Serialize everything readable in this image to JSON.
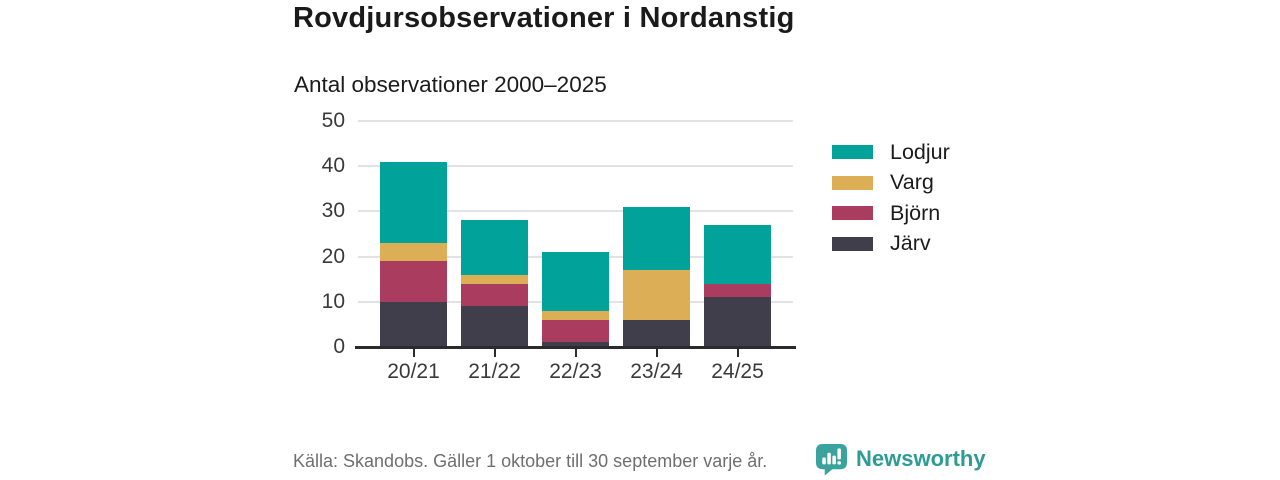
{
  "header": {
    "title": "Rovdjursobservationer i Nordanstig",
    "subtitle": "Antal observationer 2000–2025"
  },
  "chart_data": {
    "type": "bar",
    "stacked": true,
    "title": "Rovdjursobservationer i Nordanstig",
    "subtitle": "Antal observationer 2000–2025",
    "categories": [
      "20/21",
      "21/22",
      "22/23",
      "23/24",
      "24/25"
    ],
    "series": [
      {
        "name": "Lodjur",
        "color": "#00a29a",
        "values": [
          18,
          12,
          13,
          14,
          13
        ]
      },
      {
        "name": "Varg",
        "color": "#dcae55",
        "values": [
          4,
          2,
          2,
          11,
          0
        ]
      },
      {
        "name": "Björn",
        "color": "#a93c5f",
        "values": [
          9,
          5,
          5,
          0,
          3
        ]
      },
      {
        "name": "Järv",
        "color": "#413e4c",
        "values": [
          10,
          9,
          1,
          6,
          11
        ]
      }
    ],
    "stack_order_bottom_to_top": [
      "Järv",
      "Björn",
      "Varg",
      "Lodjur"
    ],
    "xlabel": "",
    "ylabel": "",
    "ylim": [
      0,
      50
    ],
    "yticks": [
      0,
      10,
      20,
      30,
      40,
      50
    ],
    "grid": true,
    "legend_position": "right"
  },
  "footer": {
    "source": "Källa: Skandobs. Gäller 1 oktober till 30 september varje år.",
    "brand": "Newsworthy",
    "brand_color": "#2d9c96",
    "logo_color": "#3ba39e"
  }
}
